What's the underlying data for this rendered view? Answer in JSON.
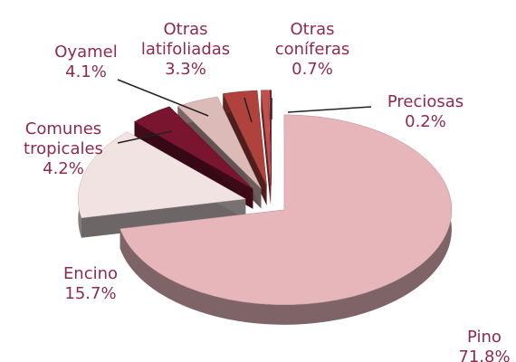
{
  "chart_data": {
    "type": "pie",
    "style": "3d-exploded",
    "slices": [
      {
        "name": "Pino",
        "label": "Pino",
        "value": 71.8,
        "value_label": "71.8%",
        "color": "#e7b6bb"
      },
      {
        "name": "Encino",
        "label": "Encino",
        "value": 15.7,
        "value_label": "15.7%",
        "color": "#f2e3e3"
      },
      {
        "name": "Comunes tropicales",
        "label": "Comunes tropicales",
        "value": 4.2,
        "value_label": "4.2%",
        "color": "#7a1530"
      },
      {
        "name": "Oyamel",
        "label": "Oyamel",
        "value": 4.1,
        "value_label": "4.1%",
        "color": "#dcbab8"
      },
      {
        "name": "Otras latifoliadas",
        "label": "Otras latifoliadas",
        "value": 3.3,
        "value_label": "3.3%",
        "color": "#b0423e"
      },
      {
        "name": "Otras coníferas",
        "label": "Otras coníferas",
        "value": 0.7,
        "value_label": "0.7%",
        "color": "#c44d4d"
      },
      {
        "name": "Preciosas",
        "label": "Preciosas",
        "value": 0.2,
        "value_label": "0.2%",
        "color": "#8a1f2c"
      }
    ],
    "label_color": "#8e2a4e"
  }
}
